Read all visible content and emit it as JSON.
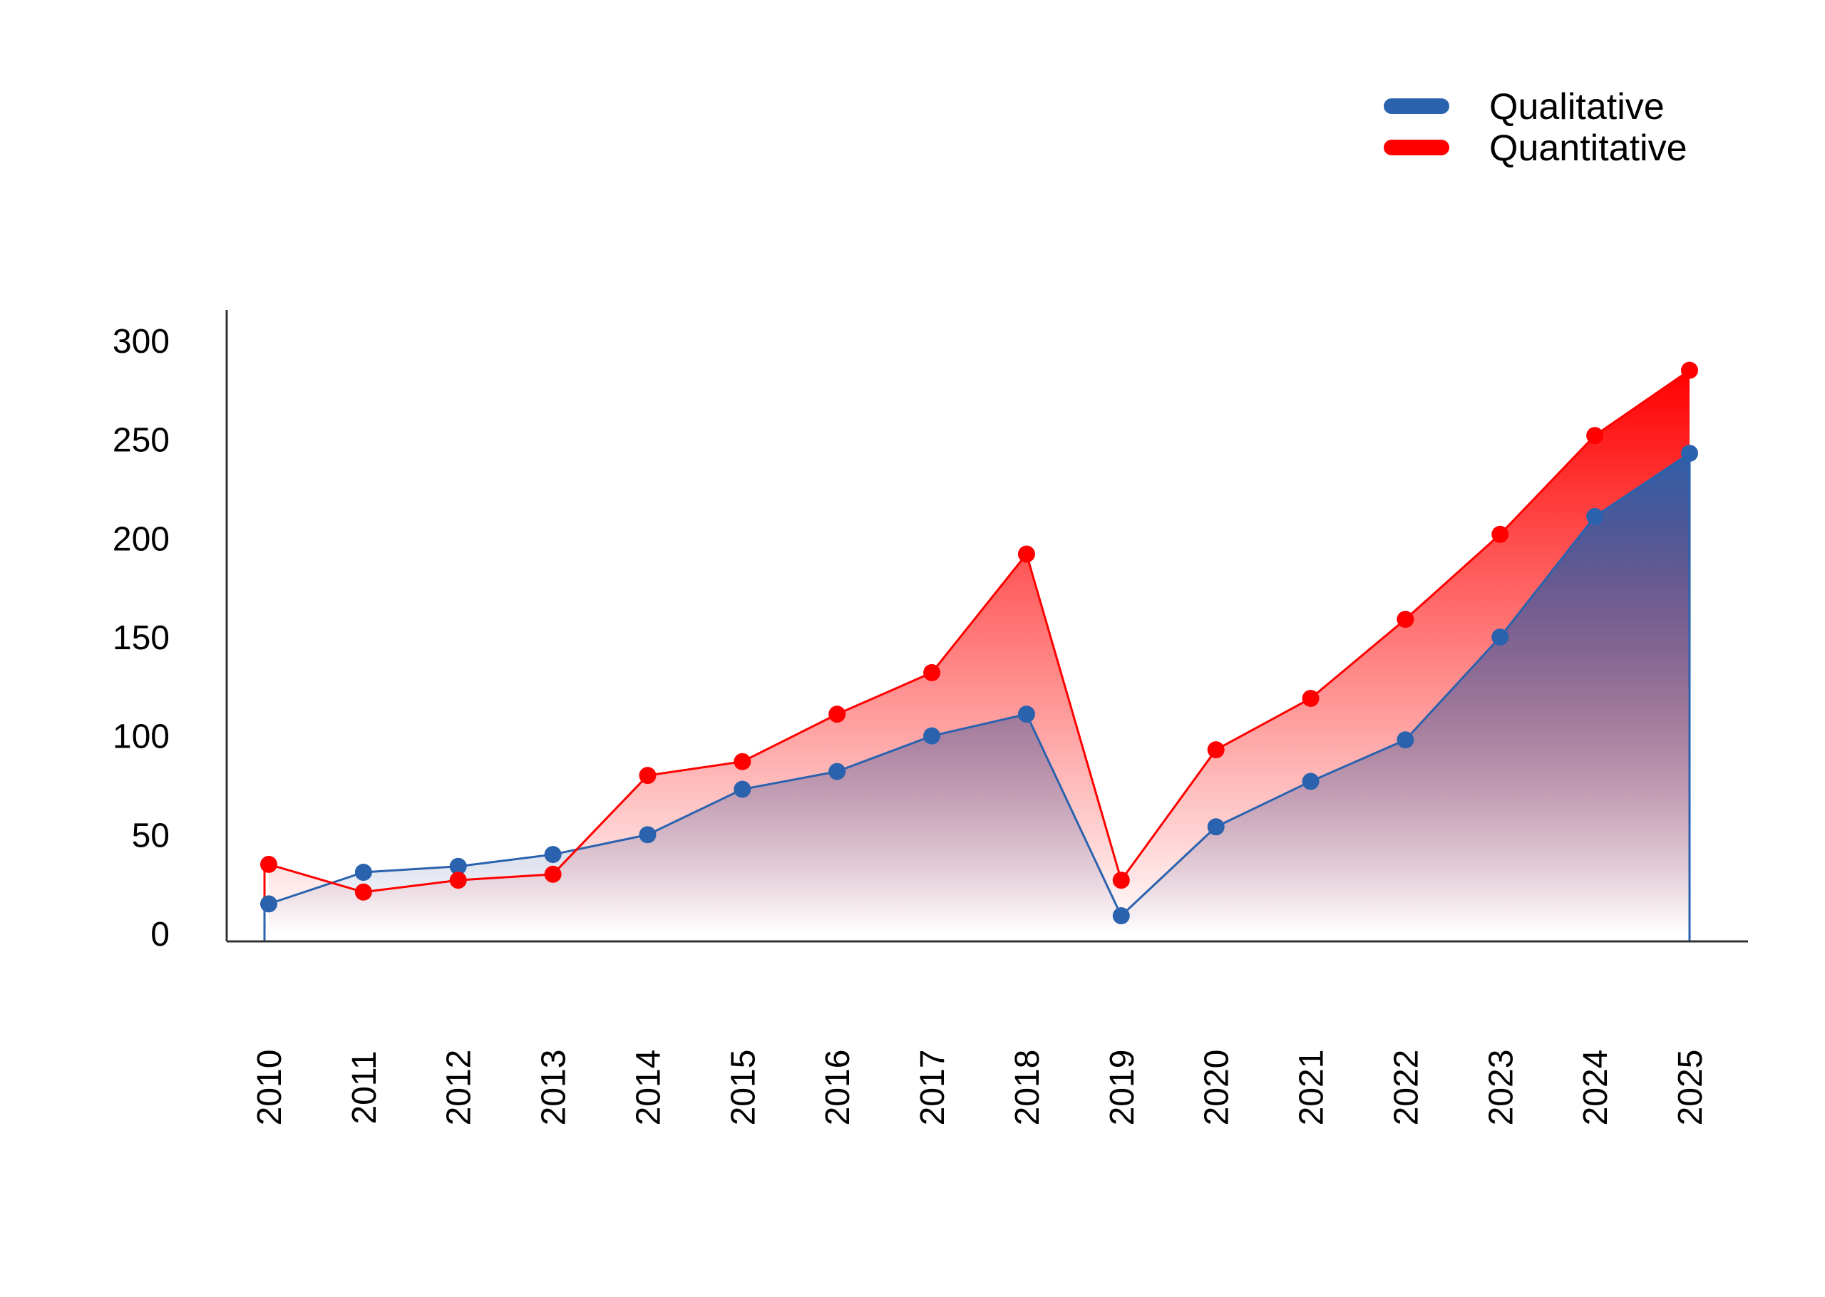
{
  "chart_data": {
    "type": "area",
    "title": "",
    "xlabel": "",
    "ylabel": "",
    "categories": [
      "2010",
      "2011",
      "2012",
      "2013",
      "2014",
      "2015",
      "2016",
      "2017",
      "2018",
      "2019",
      "2020",
      "2021",
      "2022",
      "2023",
      "2024",
      "2025"
    ],
    "yticks": [
      "0",
      "50",
      "100",
      "150",
      "200",
      "250",
      "300"
    ],
    "ylim": [
      0,
      300
    ],
    "grid": false,
    "legend_position": "top-right",
    "series": [
      {
        "name": "Qualitative",
        "color": "#2a62ae",
        "values": [
          15,
          31,
          34,
          40,
          50,
          73,
          82,
          100,
          111,
          9,
          54,
          77,
          98,
          150,
          211,
          243
        ]
      },
      {
        "name": "Quantitative",
        "color": "#ff0000",
        "values": [
          35,
          21,
          27,
          30,
          80,
          87,
          111,
          132,
          192,
          27,
          93,
          119,
          159,
          202,
          252,
          285
        ]
      }
    ]
  }
}
